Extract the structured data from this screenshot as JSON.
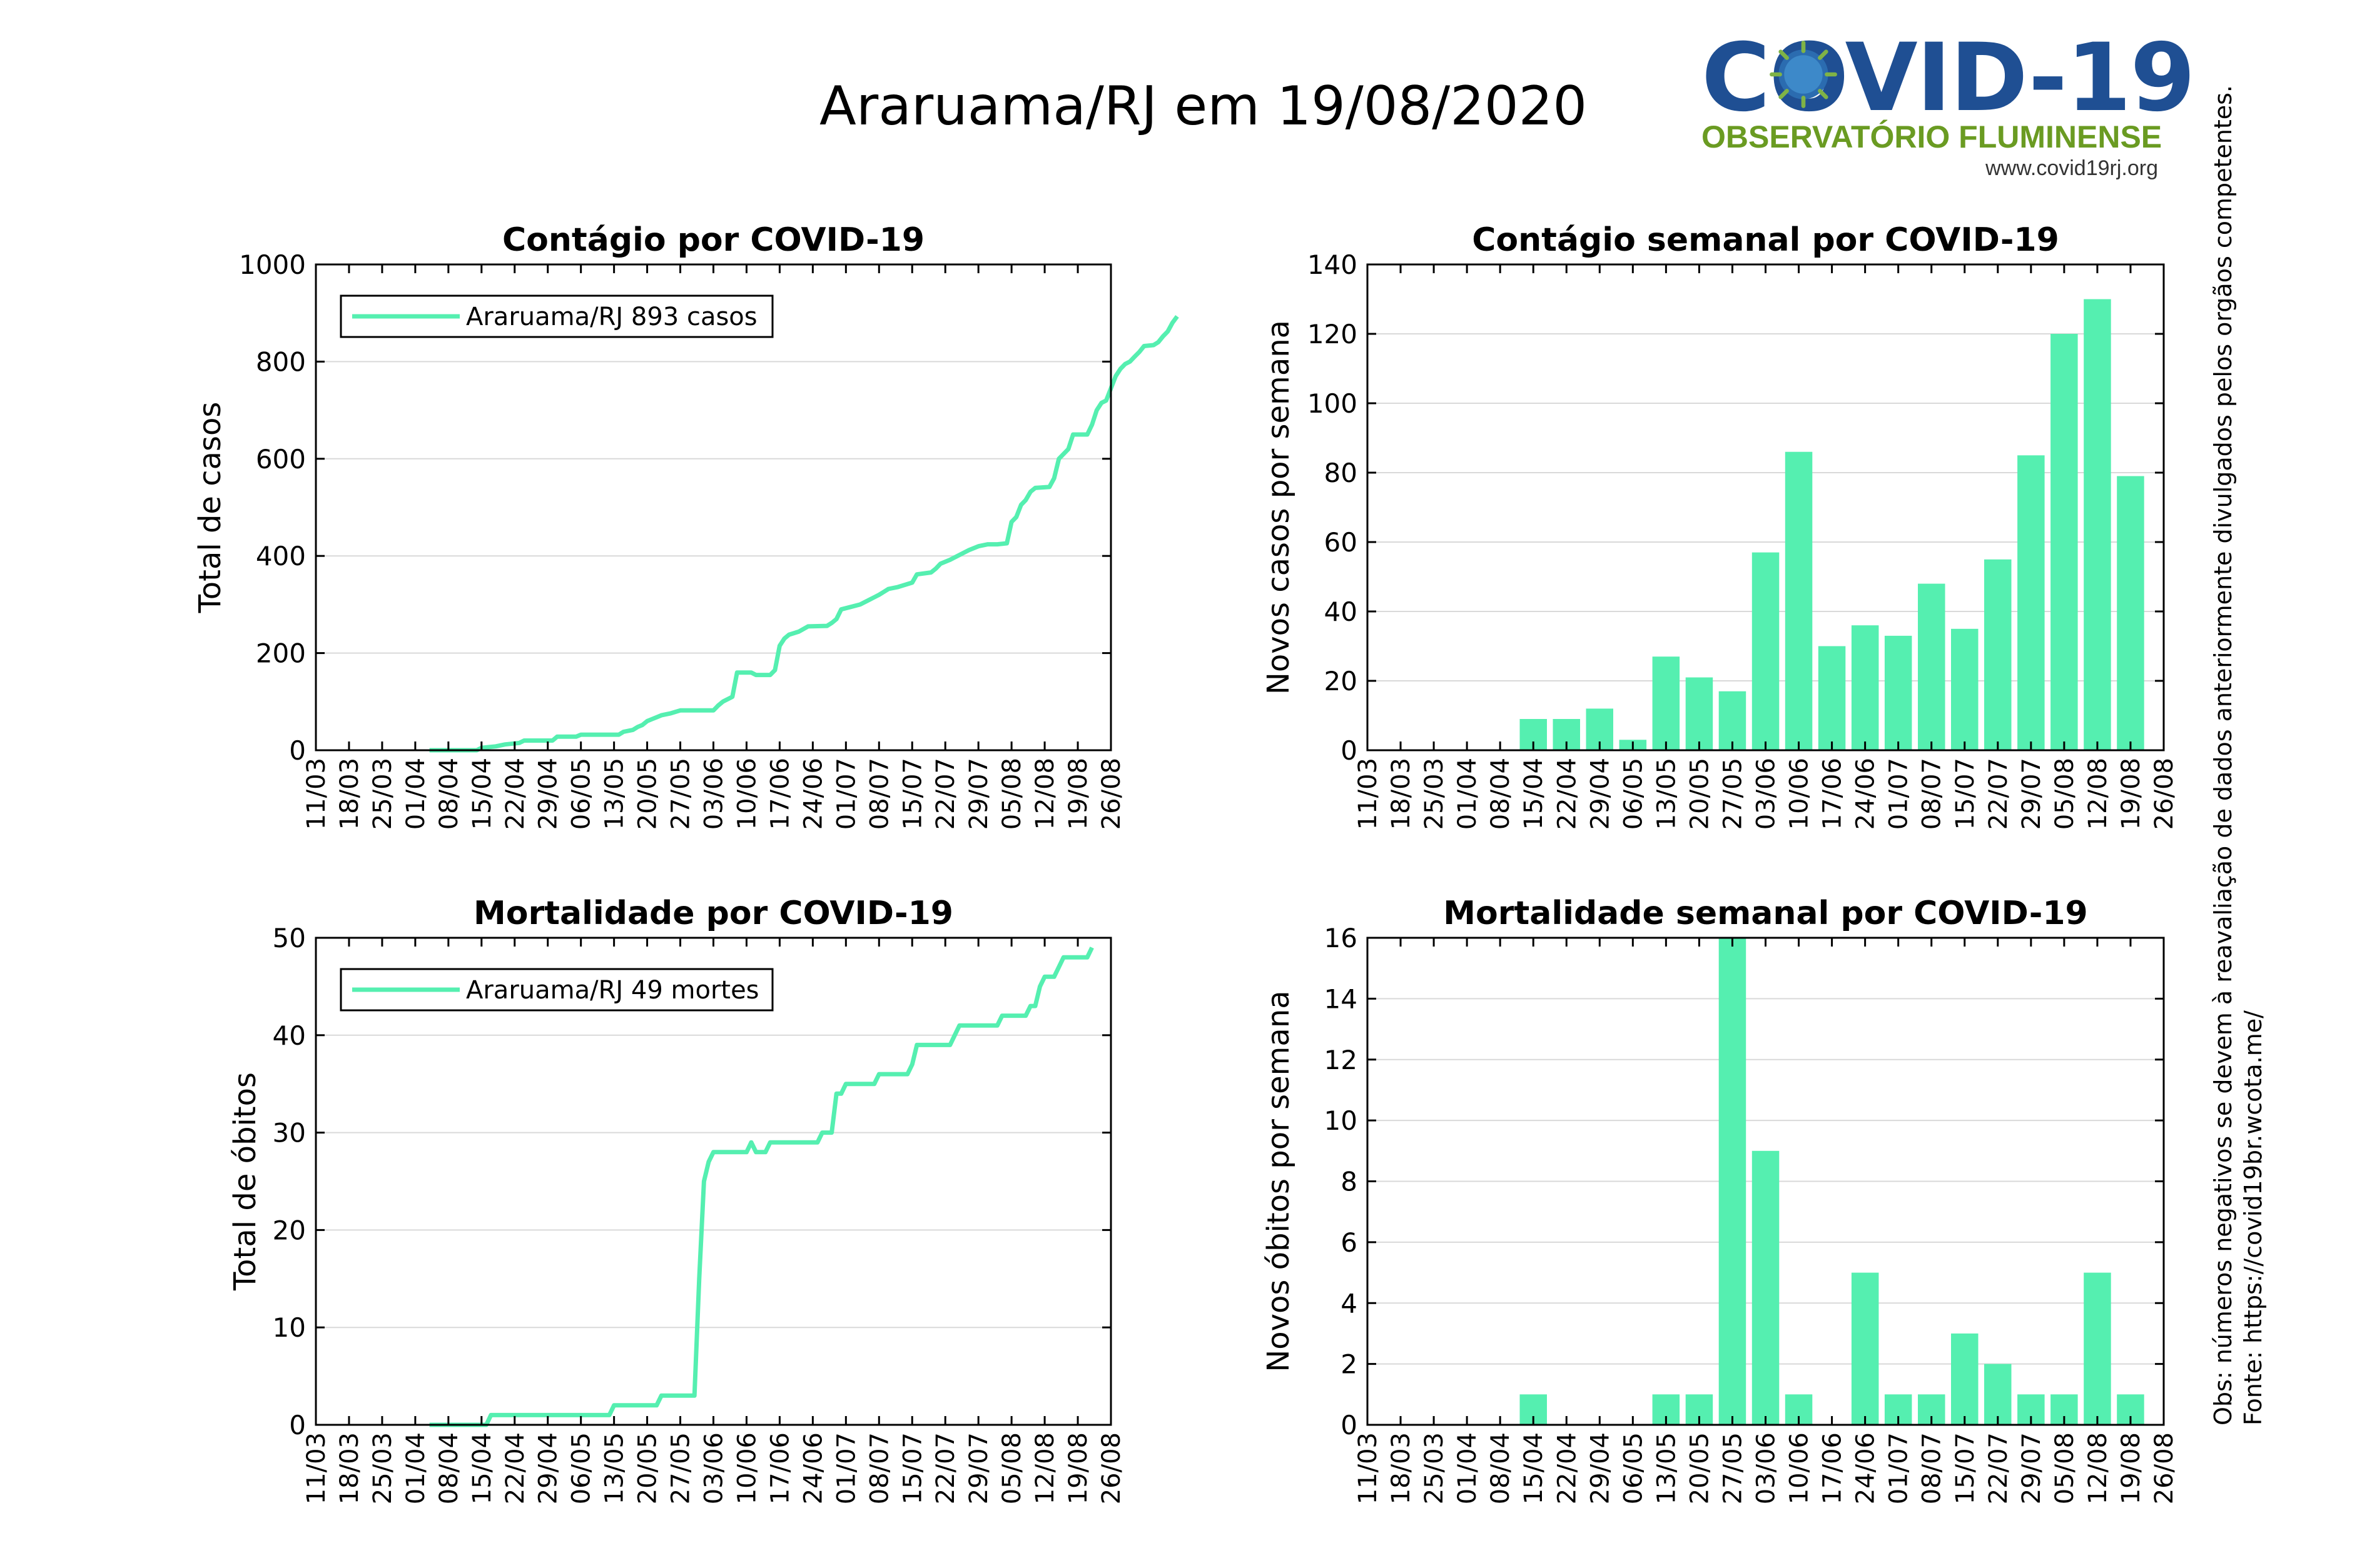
{
  "page": {
    "title": "Araruama/RJ em 19/08/2020",
    "logo": {
      "line1": "COVID-19",
      "line2": "OBSERVATÓRIO FLUMINENSE",
      "line3": "www.covid19rj.org"
    },
    "source": "Fonte: https://covid19br.wcota.me/",
    "note": "Obs: números negativos se devem à reavaliação de dados anteriormente divulgados pelos orgãos competentes."
  },
  "colors": {
    "series": "#55efb0",
    "grid": "#d9d9d9",
    "axis": "#000000"
  },
  "chart_data": [
    {
      "id": "cases-cumulative",
      "type": "line",
      "title": "Contágio por COVID-19",
      "xlabel": "",
      "ylabel": "Total de casos",
      "ylim": [
        0,
        1000
      ],
      "yticks": [
        0,
        200,
        400,
        600,
        800,
        1000
      ],
      "xticks": [
        "11/03",
        "18/03",
        "25/03",
        "01/04",
        "08/04",
        "15/04",
        "22/04",
        "29/04",
        "06/05",
        "13/05",
        "20/05",
        "27/05",
        "03/06",
        "10/06",
        "17/06",
        "24/06",
        "01/07",
        "08/07",
        "15/07",
        "22/07",
        "29/07",
        "05/08",
        "12/08",
        "19/08",
        "26/08"
      ],
      "x_unit": "days since 11/03",
      "grid": true,
      "legend": {
        "position": "top-left",
        "label": "Araruama/RJ  893 casos"
      },
      "points": [
        [
          24,
          0
        ],
        [
          34,
          0
        ],
        [
          35,
          5
        ],
        [
          38,
          8
        ],
        [
          40,
          12
        ],
        [
          43,
          15
        ],
        [
          44,
          20
        ],
        [
          50,
          20
        ],
        [
          51,
          28
        ],
        [
          55,
          28
        ],
        [
          56,
          32
        ],
        [
          64,
          32
        ],
        [
          65,
          38
        ],
        [
          67,
          42
        ],
        [
          68,
          48
        ],
        [
          69,
          52
        ],
        [
          70,
          60
        ],
        [
          71,
          64
        ],
        [
          72,
          68
        ],
        [
          73,
          72
        ],
        [
          75,
          76
        ],
        [
          77,
          82
        ],
        [
          84,
          82
        ],
        [
          85,
          92
        ],
        [
          86,
          100
        ],
        [
          87,
          105
        ],
        [
          88,
          110
        ],
        [
          89,
          160
        ],
        [
          92,
          160
        ],
        [
          93,
          155
        ],
        [
          96,
          155
        ],
        [
          97,
          165
        ],
        [
          98,
          215
        ],
        [
          99,
          230
        ],
        [
          100,
          238
        ],
        [
          102,
          244
        ],
        [
          104,
          255
        ],
        [
          108,
          256
        ],
        [
          109,
          262
        ],
        [
          110,
          270
        ],
        [
          111,
          290
        ],
        [
          113,
          295
        ],
        [
          115,
          300
        ],
        [
          117,
          310
        ],
        [
          119,
          320
        ],
        [
          120,
          326
        ],
        [
          121,
          332
        ],
        [
          123,
          336
        ],
        [
          126,
          345
        ],
        [
          127,
          362
        ],
        [
          130,
          366
        ],
        [
          131,
          374
        ],
        [
          132,
          384
        ],
        [
          134,
          392
        ],
        [
          136,
          402
        ],
        [
          138,
          412
        ],
        [
          140,
          420
        ],
        [
          142,
          424
        ],
        [
          144,
          424
        ],
        [
          146,
          426
        ],
        [
          147,
          470
        ],
        [
          148,
          480
        ],
        [
          149,
          505
        ],
        [
          150,
          515
        ],
        [
          151,
          532
        ],
        [
          152,
          540
        ],
        [
          155,
          542
        ],
        [
          156,
          560
        ],
        [
          157,
          600
        ],
        [
          159,
          620
        ],
        [
          160,
          650
        ],
        [
          163,
          650
        ],
        [
          164,
          670
        ],
        [
          165,
          700
        ],
        [
          166,
          715
        ],
        [
          167,
          720
        ],
        [
          168,
          745
        ],
        [
          169,
          770
        ],
        [
          170,
          785
        ],
        [
          171,
          795
        ],
        [
          172,
          800
        ],
        [
          173,
          810
        ],
        [
          174,
          820
        ],
        [
          175,
          832
        ],
        [
          177,
          834
        ],
        [
          178,
          840
        ],
        [
          179,
          852
        ],
        [
          180,
          862
        ],
        [
          181,
          880
        ],
        [
          182,
          893
        ]
      ]
    },
    {
      "id": "cases-weekly",
      "type": "bar",
      "title": "Contágio semanal por COVID-19",
      "xlabel": "",
      "ylabel": "Novos casos por semana",
      "ylim": [
        0,
        140
      ],
      "yticks": [
        0,
        20,
        40,
        60,
        80,
        100,
        120,
        140
      ],
      "xticks": [
        "11/03",
        "18/03",
        "25/03",
        "01/04",
        "08/04",
        "15/04",
        "22/04",
        "29/04",
        "06/05",
        "13/05",
        "20/05",
        "27/05",
        "03/06",
        "10/06",
        "17/06",
        "24/06",
        "01/07",
        "08/07",
        "15/07",
        "22/07",
        "29/07",
        "05/08",
        "12/08",
        "19/08",
        "26/08"
      ],
      "grid": true,
      "categories": [
        "15/04",
        "22/04",
        "29/04",
        "06/05",
        "13/05",
        "20/05",
        "27/05",
        "03/06",
        "10/06",
        "17/06",
        "24/06",
        "01/07",
        "08/07",
        "15/07",
        "22/07",
        "29/07",
        "05/08",
        "12/08",
        "19/08"
      ],
      "values": [
        9,
        9,
        12,
        3,
        27,
        21,
        17,
        57,
        86,
        30,
        36,
        33,
        48,
        35,
        55,
        85,
        120,
        130,
        79
      ]
    },
    {
      "id": "deaths-cumulative",
      "type": "line",
      "title": "Mortalidade por COVID-19",
      "xlabel": "",
      "ylabel": "Total de óbitos",
      "ylim": [
        0,
        50
      ],
      "yticks": [
        0,
        10,
        20,
        30,
        40,
        50
      ],
      "xticks": [
        "11/03",
        "18/03",
        "25/03",
        "01/04",
        "08/04",
        "15/04",
        "22/04",
        "29/04",
        "06/05",
        "13/05",
        "20/05",
        "27/05",
        "03/06",
        "10/06",
        "17/06",
        "24/06",
        "01/07",
        "08/07",
        "15/07",
        "22/07",
        "29/07",
        "05/08",
        "12/08",
        "19/08",
        "26/08"
      ],
      "x_unit": "days since 11/03",
      "grid": true,
      "legend": {
        "position": "top-left",
        "label": "Araruama/RJ  49 mortes"
      },
      "points": [
        [
          24,
          0
        ],
        [
          36,
          0
        ],
        [
          37,
          1
        ],
        [
          62,
          1
        ],
        [
          63,
          2
        ],
        [
          72,
          2
        ],
        [
          73,
          3
        ],
        [
          80,
          3
        ],
        [
          81,
          15
        ],
        [
          82,
          25
        ],
        [
          83,
          27
        ],
        [
          84,
          28
        ],
        [
          91,
          28
        ],
        [
          92,
          29
        ],
        [
          93,
          28
        ],
        [
          95,
          28
        ],
        [
          96,
          29
        ],
        [
          106,
          29
        ],
        [
          107,
          30
        ],
        [
          109,
          30
        ],
        [
          110,
          34
        ],
        [
          111,
          34
        ],
        [
          112,
          35
        ],
        [
          118,
          35
        ],
        [
          119,
          36
        ],
        [
          125,
          36
        ],
        [
          126,
          37
        ],
        [
          127,
          39
        ],
        [
          134,
          39
        ],
        [
          135,
          40
        ],
        [
          136,
          41
        ],
        [
          144,
          41
        ],
        [
          145,
          42
        ],
        [
          150,
          42
        ],
        [
          151,
          43
        ],
        [
          152,
          43
        ],
        [
          153,
          45
        ],
        [
          154,
          46
        ],
        [
          156,
          46
        ],
        [
          157,
          47
        ],
        [
          158,
          48
        ],
        [
          163,
          48
        ],
        [
          164,
          49
        ]
      ]
    },
    {
      "id": "deaths-weekly",
      "type": "bar",
      "title": "Mortalidade semanal por COVID-19",
      "xlabel": "",
      "ylabel": "Novos óbitos por semana",
      "ylim": [
        0,
        16
      ],
      "yticks": [
        0,
        2,
        4,
        6,
        8,
        10,
        12,
        14,
        16
      ],
      "xticks": [
        "11/03",
        "18/03",
        "25/03",
        "01/04",
        "08/04",
        "15/04",
        "22/04",
        "29/04",
        "06/05",
        "13/05",
        "20/05",
        "27/05",
        "03/06",
        "10/06",
        "17/06",
        "24/06",
        "01/07",
        "08/07",
        "15/07",
        "22/07",
        "29/07",
        "05/08",
        "12/08",
        "19/08",
        "26/08"
      ],
      "grid": true,
      "categories": [
        "15/04",
        "22/04",
        "29/04",
        "06/05",
        "13/05",
        "20/05",
        "27/05",
        "03/06",
        "10/06",
        "17/06",
        "24/06",
        "01/07",
        "08/07",
        "15/07",
        "22/07",
        "29/07",
        "05/08",
        "12/08",
        "19/08"
      ],
      "values": [
        1,
        0,
        0,
        0,
        1,
        1,
        16,
        9,
        1,
        0,
        5,
        1,
        1,
        3,
        2,
        1,
        1,
        5,
        1
      ]
    }
  ]
}
